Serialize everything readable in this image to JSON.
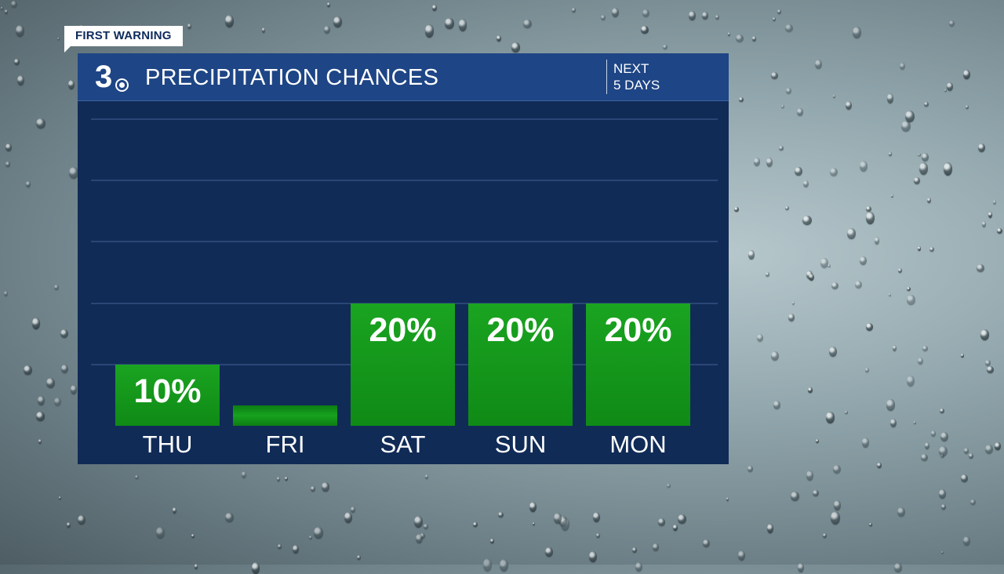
{
  "badge": "FIRST WARNING",
  "header": {
    "logo_text": "3",
    "title": "PRECIPITATION CHANCES",
    "period_line1": "NEXT",
    "period_line2": "5 DAYS"
  },
  "colors": {
    "panel": "#112b57",
    "header": "#1e4585",
    "bar": "#15981b",
    "text": "#ffffff"
  },
  "chart_data": {
    "type": "bar",
    "categories": [
      "THU",
      "FRI",
      "SAT",
      "SUN",
      "MON"
    ],
    "values": [
      10,
      0,
      20,
      20,
      20
    ],
    "value_labels": [
      "10%",
      "",
      "20%",
      "20%",
      "20%"
    ],
    "unit": "%",
    "ylim": [
      0,
      50
    ],
    "grid": true
  }
}
